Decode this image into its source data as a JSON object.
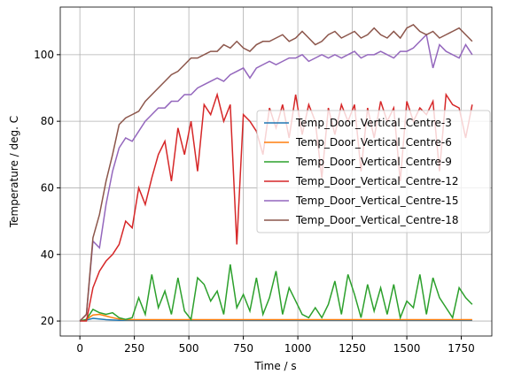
{
  "chart_data": {
    "type": "line",
    "xlabel": "Time / s",
    "ylabel": "Temperature / deg. C",
    "x": [
      0,
      30,
      60,
      90,
      120,
      150,
      180,
      210,
      240,
      270,
      300,
      330,
      360,
      390,
      420,
      450,
      480,
      510,
      540,
      570,
      600,
      630,
      660,
      690,
      720,
      750,
      780,
      810,
      840,
      870,
      900,
      930,
      960,
      990,
      1020,
      1050,
      1080,
      1110,
      1140,
      1170,
      1200,
      1230,
      1260,
      1290,
      1320,
      1350,
      1380,
      1410,
      1440,
      1470,
      1500,
      1530,
      1560,
      1590,
      1620,
      1650,
      1680,
      1710,
      1740,
      1770,
      1800
    ],
    "series": [
      {
        "name": "Temp_Door_Vertical_Centre-3",
        "color": "#1f77b4",
        "values": [
          20,
          20.3,
          20.8,
          20.6,
          20.4,
          20.3,
          20.2,
          20.2,
          20.2,
          20.2,
          20.2,
          20.2,
          20.2,
          20.2,
          20.2,
          20.2,
          20.2,
          20.2,
          20.2,
          20.2,
          20.2,
          20.2,
          20.2,
          20.2,
          20.2,
          20.2,
          20.2,
          20.2,
          20.2,
          20.2,
          20.2,
          20.2,
          20.2,
          20.2,
          20.2,
          20.2,
          20.2,
          20.2,
          20.2,
          20.2,
          20.2,
          20.2,
          20.2,
          20.2,
          20.2,
          20.2,
          20.2,
          20.2,
          20.2,
          20.2,
          20.2,
          20.2,
          20.2,
          20.2,
          20.2,
          20.2,
          20.2,
          20.2,
          20.2,
          20.2,
          20.2
        ]
      },
      {
        "name": "Temp_Door_Vertical_Centre-6",
        "color": "#ff7f0e",
        "values": [
          20,
          20.5,
          21.8,
          22,
          21.5,
          21,
          20.6,
          20.4,
          20.4,
          20.4,
          20.4,
          20.4,
          20.4,
          20.4,
          20.4,
          20.4,
          20.4,
          20.4,
          20.4,
          20.4,
          20.4,
          20.4,
          20.4,
          20.4,
          20.4,
          20.4,
          20.4,
          20.4,
          20.4,
          20.4,
          20.4,
          20.4,
          20.4,
          20.4,
          20.4,
          20.4,
          20.4,
          20.4,
          20.4,
          20.4,
          20.4,
          20.4,
          20.4,
          20.4,
          20.4,
          20.4,
          20.4,
          20.4,
          20.4,
          20.4,
          20.4,
          20.4,
          20.4,
          20.4,
          20.4,
          20.4,
          20.4,
          20.4,
          20.4,
          20.4,
          20.4
        ]
      },
      {
        "name": "Temp_Door_Vertical_Centre-9",
        "color": "#2ca02c",
        "values": [
          20,
          20.5,
          23.5,
          22.5,
          22,
          22.5,
          21,
          20.5,
          21,
          27,
          22,
          34,
          24,
          29,
          22,
          33,
          23,
          20.5,
          33,
          31,
          26,
          29,
          22,
          37,
          24,
          28,
          23,
          33,
          22,
          27,
          35,
          22,
          30,
          26,
          22,
          21,
          24,
          21,
          25,
          32,
          22,
          34,
          28,
          21,
          31,
          23,
          30,
          22,
          31,
          21,
          26,
          24,
          34,
          22,
          33,
          27,
          24,
          21,
          30,
          27,
          25
        ]
      },
      {
        "name": "Temp_Door_Vertical_Centre-12",
        "color": "#d62728",
        "values": [
          20,
          20,
          30,
          35,
          38,
          40,
          43,
          50,
          48,
          60,
          55,
          63,
          70,
          74,
          62,
          78,
          70,
          80,
          65,
          85,
          82,
          88,
          80,
          85,
          43,
          82,
          80,
          77,
          70,
          84,
          78,
          85,
          75,
          88,
          76,
          85,
          80,
          63,
          84,
          76,
          85,
          80,
          85,
          65,
          84,
          75,
          86,
          80,
          84,
          62,
          86,
          80,
          84,
          82,
          86,
          65,
          88,
          85,
          84,
          75,
          85
        ]
      },
      {
        "name": "Temp_Door_Vertical_Centre-15",
        "color": "#9467bd",
        "values": [
          20,
          22,
          44,
          42,
          55,
          65,
          72,
          75,
          74,
          77,
          80,
          82,
          84,
          84,
          86,
          86,
          88,
          88,
          90,
          91,
          92,
          93,
          92,
          94,
          95,
          96,
          93,
          96,
          97,
          98,
          97,
          98,
          99,
          99,
          100,
          98,
          99,
          100,
          99,
          100,
          99,
          100,
          101,
          99,
          100,
          100,
          101,
          100,
          99,
          101,
          101,
          102,
          104,
          106,
          96,
          103,
          101,
          100,
          99,
          103,
          100
        ]
      },
      {
        "name": "Temp_Door_Vertical_Centre-18",
        "color": "#8c564b",
        "values": [
          20,
          22,
          45,
          52,
          62,
          70,
          79,
          81,
          82,
          83,
          86,
          88,
          90,
          92,
          94,
          95,
          97,
          99,
          99,
          100,
          101,
          101,
          103,
          102,
          104,
          102,
          101,
          103,
          104,
          104,
          105,
          106,
          104,
          105,
          107,
          105,
          103,
          104,
          106,
          107,
          105,
          106,
          107,
          105,
          106,
          108,
          106,
          105,
          107,
          105,
          108,
          109,
          107,
          106,
          107,
          105,
          106,
          107,
          108,
          106,
          104
        ]
      }
    ],
    "xlim": [
      -90,
      1890
    ],
    "xticks": [
      0,
      250,
      500,
      750,
      1000,
      1250,
      1500,
      1750
    ],
    "ylim": [
      15.5,
      114.3
    ],
    "yticks": [
      20,
      40,
      60,
      80,
      100
    ],
    "grid": true,
    "legend": "center right"
  }
}
